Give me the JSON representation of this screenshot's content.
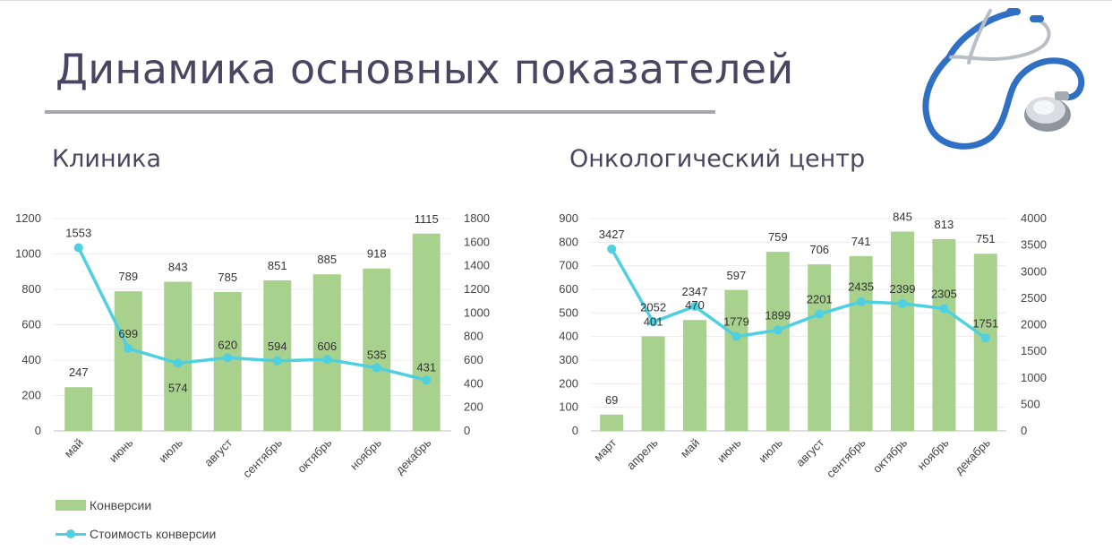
{
  "page": {
    "title": "Динамика основных показателей"
  },
  "legend": {
    "bars": "Конверсии",
    "line": "Стоимость конверсии"
  },
  "colors": {
    "bars": "#a9d18e",
    "line": "#4fd0e0",
    "title": "#4a4560"
  },
  "icons": [
    "stethoscope-icon"
  ],
  "chart_data": [
    {
      "type": "bar",
      "title": "Клиника",
      "categories": [
        "май",
        "июнь",
        "июль",
        "август",
        "сентябрь",
        "октябрь",
        "ноябрь",
        "декабрь"
      ],
      "series": [
        {
          "name": "Конверсии",
          "type": "bar",
          "axis": "left",
          "values": [
            247,
            789,
            843,
            785,
            851,
            885,
            918,
            1115
          ]
        },
        {
          "name": "Стоимость конверсии",
          "type": "line",
          "axis": "right",
          "values": [
            1553,
            699,
            574,
            620,
            594,
            606,
            535,
            431
          ]
        }
      ],
      "ylim_left": [
        0,
        1200
      ],
      "yticks_left": [
        0,
        200,
        400,
        600,
        800,
        1000,
        1200
      ],
      "ylim_right": [
        0,
        1800
      ],
      "yticks_right": [
        0,
        200,
        400,
        600,
        800,
        1000,
        1200,
        1400,
        1600,
        1800
      ],
      "grid": true,
      "legend": "bottom-left"
    },
    {
      "type": "bar",
      "title": "Онкологический центр",
      "categories": [
        "март",
        "апрель",
        "май",
        "июнь",
        "июль",
        "август",
        "сентябрь",
        "октябрь",
        "ноябрь",
        "декабрь"
      ],
      "series": [
        {
          "name": "Конверсии",
          "type": "bar",
          "axis": "left",
          "values": [
            69,
            401,
            470,
            597,
            759,
            706,
            741,
            845,
            813,
            751
          ]
        },
        {
          "name": "Стоимость конверсии",
          "type": "line",
          "axis": "right",
          "values": [
            3427,
            2052,
            2347,
            1779,
            1899,
            2201,
            2435,
            2399,
            2305,
            1751
          ]
        }
      ],
      "ylim_left": [
        0,
        900
      ],
      "yticks_left": [
        0,
        100,
        200,
        300,
        400,
        500,
        600,
        700,
        800,
        900
      ],
      "ylim_right": [
        0,
        4000
      ],
      "yticks_right": [
        0,
        500,
        1000,
        1500,
        2000,
        2500,
        3000,
        3500,
        4000
      ],
      "grid": true,
      "legend": "bottom-left"
    }
  ]
}
